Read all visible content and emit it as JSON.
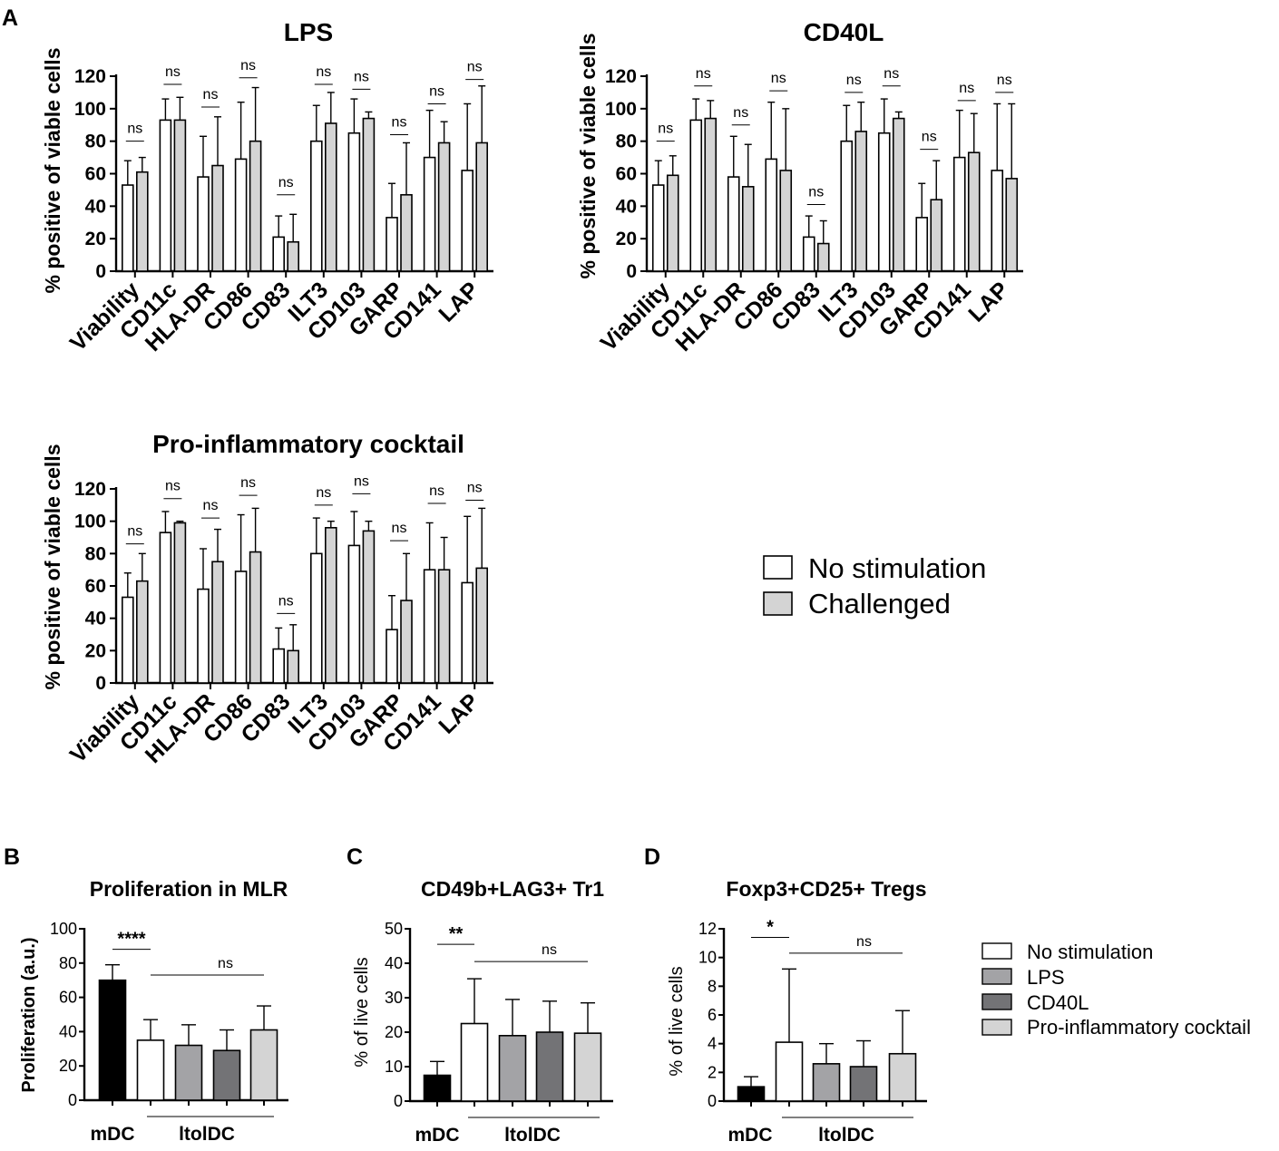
{
  "panel_letters": {
    "A": "A",
    "B": "B",
    "C": "C",
    "D": "D"
  },
  "legend_A": {
    "items": [
      {
        "label": "No stimulation",
        "color": "#ffffff"
      },
      {
        "label": "Challenged",
        "color": "#d4d4d4"
      }
    ]
  },
  "legend_BCD": {
    "items": [
      {
        "label": "No stimulation",
        "color": "#ffffff"
      },
      {
        "label": "LPS",
        "color": "#a3a3a6"
      },
      {
        "label": "CD40L",
        "color": "#737376"
      },
      {
        "label": "Pro-inflammatory cocktail",
        "color": "#d4d4d4"
      }
    ]
  },
  "chart_data": [
    {
      "id": "A1",
      "type": "bar",
      "title": "LPS",
      "ylabel": "% positive of viable cells",
      "ylim": [
        0,
        120
      ],
      "yticks": [
        "0",
        "20",
        "40",
        "60",
        "80",
        "100",
        "120"
      ],
      "categories": [
        "Viability",
        "CD11c",
        "HLA-DR",
        "CD86",
        "CD83",
        "ILT3",
        "CD103",
        "GARP",
        "CD141",
        "LAP"
      ],
      "series": [
        {
          "name": "No stimulation",
          "values": [
            53,
            93,
            58,
            69,
            21,
            80,
            85,
            33,
            70,
            62
          ],
          "errors": [
            15,
            13,
            25,
            35,
            13,
            22,
            21,
            21,
            29,
            41
          ]
        },
        {
          "name": "Challenged",
          "values": [
            61,
            93,
            65,
            80,
            18,
            91,
            94,
            47,
            79,
            79
          ],
          "errors": [
            9,
            14,
            30,
            33,
            17,
            19,
            4,
            32,
            13,
            35
          ]
        }
      ],
      "significance": [
        {
          "label": "ns",
          "y": 80
        },
        {
          "label": "ns",
          "y": 115
        },
        {
          "label": "ns",
          "y": 101
        },
        {
          "label": "ns",
          "y": 119
        },
        {
          "label": "ns",
          "y": 47
        },
        {
          "label": "ns",
          "y": 115
        },
        {
          "label": "ns",
          "y": 112
        },
        {
          "label": "ns",
          "y": 84
        },
        {
          "label": "ns",
          "y": 103
        },
        {
          "label": "ns",
          "y": 118
        }
      ]
    },
    {
      "id": "A2",
      "type": "bar",
      "title": "CD40L",
      "ylabel": "% positive of viable cells",
      "ylim": [
        0,
        120
      ],
      "yticks": [
        "0",
        "20",
        "40",
        "60",
        "80",
        "100",
        "120"
      ],
      "categories": [
        "Viability",
        "CD11c",
        "HLA-DR",
        "CD86",
        "CD83",
        "ILT3",
        "CD103",
        "GARP",
        "CD141",
        "LAP"
      ],
      "series": [
        {
          "name": "No stimulation",
          "values": [
            53,
            93,
            58,
            69,
            21,
            80,
            85,
            33,
            70,
            62
          ],
          "errors": [
            15,
            13,
            25,
            35,
            13,
            22,
            21,
            21,
            29,
            41
          ]
        },
        {
          "name": "Challenged",
          "values": [
            59,
            94,
            52,
            62,
            17,
            86,
            94,
            44,
            73,
            57
          ],
          "errors": [
            12,
            11,
            26,
            38,
            14,
            18,
            4,
            24,
            24,
            46
          ]
        }
      ],
      "significance": [
        {
          "label": "ns",
          "y": 80
        },
        {
          "label": "ns",
          "y": 114
        },
        {
          "label": "ns",
          "y": 90
        },
        {
          "label": "ns",
          "y": 111
        },
        {
          "label": "ns",
          "y": 41
        },
        {
          "label": "ns",
          "y": 110
        },
        {
          "label": "ns",
          "y": 114
        },
        {
          "label": "ns",
          "y": 75
        },
        {
          "label": "ns",
          "y": 105
        },
        {
          "label": "ns",
          "y": 110
        }
      ]
    },
    {
      "id": "A3",
      "type": "bar",
      "title": "Pro-inflammatory cocktail",
      "ylabel": "% positive of viable cells",
      "ylim": [
        0,
        120
      ],
      "yticks": [
        "0",
        "20",
        "40",
        "60",
        "80",
        "100",
        "120"
      ],
      "categories": [
        "Viability",
        "CD11c",
        "HLA-DR",
        "CD86",
        "CD83",
        "ILT3",
        "CD103",
        "GARP",
        "CD141",
        "LAP"
      ],
      "series": [
        {
          "name": "No stimulation",
          "values": [
            53,
            93,
            58,
            69,
            21,
            80,
            85,
            33,
            70,
            62
          ],
          "errors": [
            15,
            13,
            25,
            35,
            13,
            22,
            21,
            21,
            29,
            41
          ]
        },
        {
          "name": "Challenged",
          "values": [
            63,
            99,
            75,
            81,
            20,
            96,
            94,
            51,
            70,
            71
          ],
          "errors": [
            17,
            1,
            20,
            27,
            16,
            4,
            6,
            29,
            20,
            37
          ]
        }
      ],
      "significance": [
        {
          "label": "ns",
          "y": 86
        },
        {
          "label": "ns",
          "y": 114
        },
        {
          "label": "ns",
          "y": 102
        },
        {
          "label": "ns",
          "y": 116
        },
        {
          "label": "ns",
          "y": 43
        },
        {
          "label": "ns",
          "y": 110
        },
        {
          "label": "ns",
          "y": 117
        },
        {
          "label": "ns",
          "y": 88
        },
        {
          "label": "ns",
          "y": 111
        },
        {
          "label": "ns",
          "y": 113
        }
      ]
    },
    {
      "id": "B",
      "type": "bar",
      "title": "Proliferation in MLR",
      "ylabel": "Proliferation (a.u.)",
      "ylim": [
        0,
        100
      ],
      "yticks": [
        "0",
        "20",
        "40",
        "60",
        "80",
        "100"
      ],
      "groups": [
        "mDC",
        "ltolDC"
      ],
      "series": [
        {
          "name": "mDC",
          "value": 70,
          "error": 9
        },
        {
          "name": "No stimulation",
          "value": 35,
          "error": 12
        },
        {
          "name": "LPS",
          "value": 32,
          "error": 12
        },
        {
          "name": "CD40L",
          "value": 29,
          "error": 12
        },
        {
          "name": "Pro-inflammatory cocktail",
          "value": 41,
          "error": 14
        }
      ],
      "significance": [
        {
          "label": "****",
          "y": 88
        },
        {
          "label": "ns",
          "y": 73
        }
      ]
    },
    {
      "id": "C",
      "type": "bar",
      "title": "CD49b+LAG3+ Tr1",
      "ylabel": "% of live cells",
      "ylim": [
        0,
        50
      ],
      "yticks": [
        "0",
        "10",
        "20",
        "30",
        "40",
        "50"
      ],
      "groups": [
        "mDC",
        "ltolDC"
      ],
      "series": [
        {
          "name": "mDC",
          "value": 7.5,
          "error": 4
        },
        {
          "name": "No stimulation",
          "value": 22.5,
          "error": 13
        },
        {
          "name": "LPS",
          "value": 19,
          "error": 10.5
        },
        {
          "name": "CD40L",
          "value": 20,
          "error": 9
        },
        {
          "name": "Pro-inflammatory cocktail",
          "value": 19.7,
          "error": 8.8
        }
      ],
      "significance": [
        {
          "label": "**",
          "y": 45.5
        },
        {
          "label": "ns",
          "y": 40.5
        }
      ]
    },
    {
      "id": "D",
      "type": "bar",
      "title": "Foxp3+CD25+ Tregs",
      "ylabel": "% of live cells",
      "ylim": [
        0,
        12
      ],
      "yticks": [
        "0",
        "2",
        "4",
        "6",
        "8",
        "10",
        "12"
      ],
      "groups": [
        "mDC",
        "ltolDC"
      ],
      "series": [
        {
          "name": "mDC",
          "value": 1,
          "error": 0.7
        },
        {
          "name": "No stimulation",
          "value": 4.1,
          "error": 5.1
        },
        {
          "name": "LPS",
          "value": 2.6,
          "error": 1.4
        },
        {
          "name": "CD40L",
          "value": 2.4,
          "error": 1.8
        },
        {
          "name": "Pro-inflammatory cocktail",
          "value": 3.3,
          "error": 3
        }
      ],
      "significance": [
        {
          "label": "*",
          "y": 11.4
        },
        {
          "label": "ns",
          "y": 10.3
        }
      ]
    }
  ]
}
